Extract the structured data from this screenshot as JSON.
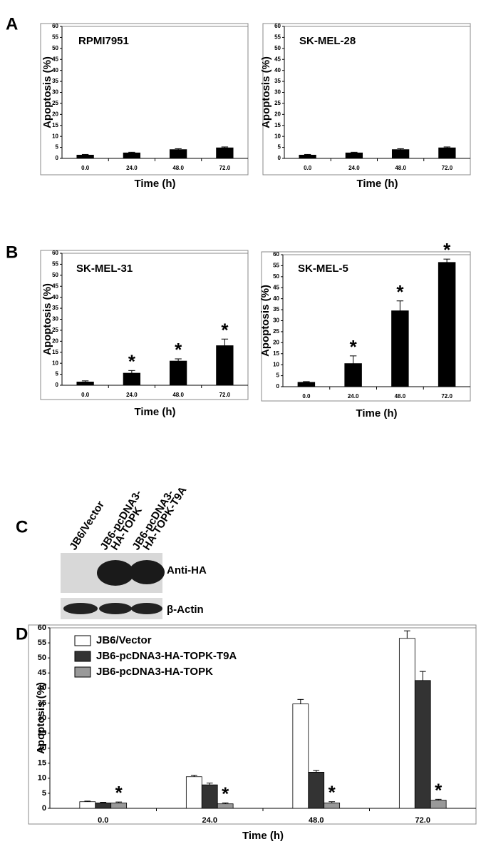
{
  "panels": [
    "A",
    "B",
    "C",
    "D"
  ],
  "chart_data": [
    {
      "type": "bar",
      "title": "RPMI7951",
      "xlabel": "Time (h)",
      "ylabel": "Apoptosis (%)",
      "categories": [
        "0.0",
        "24.0",
        "48.0",
        "72.0"
      ],
      "series": [
        {
          "color": "#000000",
          "values": [
            1.5,
            2.5,
            4,
            4.8
          ],
          "errors": [
            0.3,
            0.3,
            0.4,
            0.4
          ]
        }
      ],
      "ylim": [
        0,
        60
      ],
      "yticks": [
        0,
        5,
        10,
        15,
        20,
        25,
        30,
        35,
        40,
        45,
        50,
        55,
        60
      ]
    },
    {
      "type": "bar",
      "title": "SK-MEL-28",
      "xlabel": "Time (h)",
      "ylabel": "Apoptosis (%)",
      "categories": [
        "0.0",
        "24.0",
        "48.0",
        "72.0"
      ],
      "series": [
        {
          "color": "#000000",
          "values": [
            1.5,
            2.5,
            4,
            4.8
          ],
          "errors": [
            0.3,
            0.3,
            0.4,
            0.4
          ]
        }
      ],
      "ylim": [
        0,
        60
      ],
      "yticks": [
        0,
        5,
        10,
        15,
        20,
        25,
        30,
        35,
        40,
        45,
        50,
        55,
        60
      ]
    },
    {
      "type": "bar",
      "title": "SK-MEL-31",
      "xlabel": "Time (h)",
      "ylabel": "Apoptosis (%)",
      "categories": [
        "0.0",
        "24.0",
        "48.0",
        "72.0"
      ],
      "series": [
        {
          "color": "#000000",
          "values": [
            1.5,
            5.5,
            11,
            18
          ],
          "errors": [
            0.5,
            1.2,
            1,
            3
          ],
          "annotations": [
            null,
            "*",
            "*",
            "*"
          ]
        }
      ],
      "ylim": [
        0,
        60
      ],
      "yticks": [
        0,
        5,
        10,
        15,
        20,
        25,
        30,
        35,
        40,
        45,
        50,
        55,
        60
      ]
    },
    {
      "type": "bar",
      "title": "SK-MEL-5",
      "xlabel": "Time (h)",
      "ylabel": "Apoptosis (%)",
      "categories": [
        "0.0",
        "24.0",
        "48.0",
        "72.0"
      ],
      "series": [
        {
          "color": "#000000",
          "values": [
            2,
            10.5,
            34.5,
            56.5
          ],
          "errors": [
            0.3,
            3.5,
            4.5,
            1.5
          ],
          "annotations": [
            null,
            "*",
            "*",
            "*"
          ]
        }
      ],
      "ylim": [
        0,
        60
      ],
      "yticks": [
        0,
        5,
        10,
        15,
        20,
        25,
        30,
        35,
        40,
        45,
        50,
        55,
        60
      ]
    },
    {
      "type": "bar",
      "xlabel": "Time (h)",
      "ylabel": "Apoptosis (%)",
      "legend": "upper left",
      "categories": [
        "0.0",
        "24.0",
        "48.0",
        "72.0"
      ],
      "series": [
        {
          "name": "JB6/Vector",
          "color": "#ffffff",
          "values": [
            2.2,
            10.5,
            34.7,
            56.5
          ],
          "errors": [
            0.2,
            0.5,
            1.5,
            2.5
          ]
        },
        {
          "name": "JB6-pcDNA3-HA-TOPK-T9A",
          "color": "#333333",
          "values": [
            1.8,
            7.8,
            12,
            42.5
          ],
          "errors": [
            0.2,
            0.6,
            0.6,
            3
          ]
        },
        {
          "name": "JB6-pcDNA3-HA-TOPK",
          "color": "#999999",
          "values": [
            1.8,
            1.5,
            1.8,
            2.7
          ],
          "errors": [
            0.3,
            0.3,
            0.4,
            0.3
          ],
          "annotations": [
            "*",
            "*",
            "*",
            "*"
          ]
        }
      ],
      "ylim": [
        0,
        60
      ],
      "yticks": [
        0,
        5,
        10,
        15,
        20,
        25,
        30,
        35,
        40,
        45,
        50,
        55,
        60
      ]
    }
  ],
  "blot": {
    "lanes": [
      [
        "JB6/Vector"
      ],
      [
        "JB6-pcDNA3-",
        "HA-TOPK"
      ],
      [
        "JB6-pcDNA3-",
        "HA-TOPK-T9A"
      ]
    ],
    "rows": [
      "Anti-HA",
      "β-Actin"
    ]
  }
}
